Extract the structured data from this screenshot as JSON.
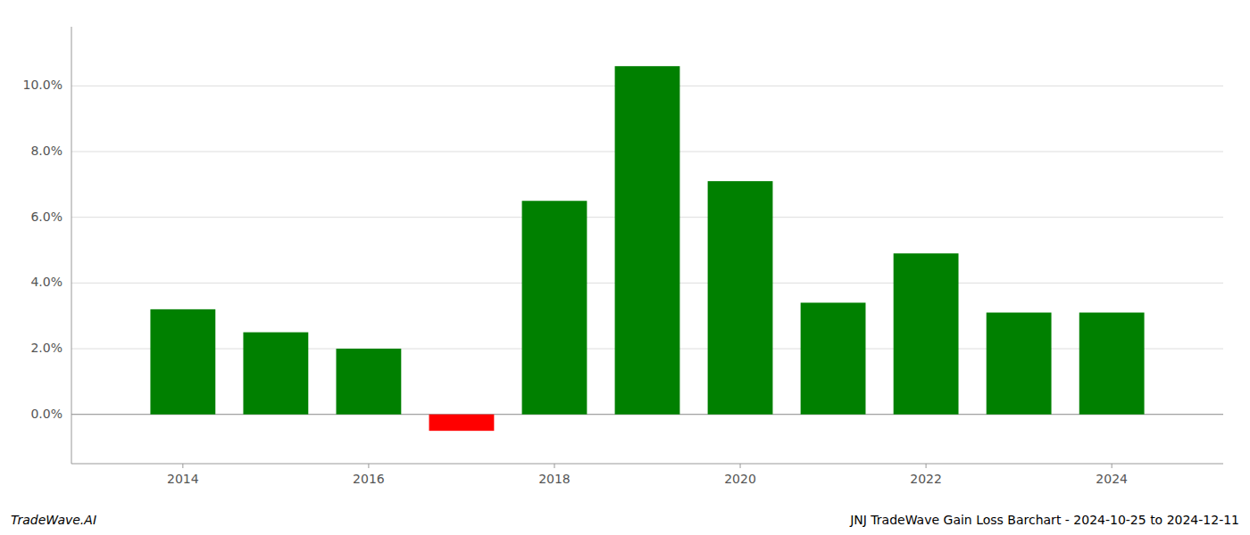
{
  "chart_data": {
    "type": "bar",
    "title": "JNJ TradeWave Gain Loss Barchart - 2024-10-25 to 2024-12-11",
    "annotations": [
      "TradeWave.AI"
    ],
    "x": [
      2014,
      2015,
      2016,
      2017,
      2018,
      2019,
      2020,
      2021,
      2022,
      2023,
      2024
    ],
    "values": [
      0.032,
      0.025,
      0.02,
      -0.005,
      0.065,
      0.106,
      0.071,
      0.034,
      0.049,
      0.031,
      0.031
    ],
    "colors": [
      "#008000",
      "#008000",
      "#008000",
      "#ff0000",
      "#008000",
      "#008000",
      "#008000",
      "#008000",
      "#008000",
      "#008000",
      "#008000"
    ],
    "xlim": [
      2012.8,
      2025.2
    ],
    "xticks": [
      2014,
      2016,
      2018,
      2020,
      2022,
      2024
    ],
    "ylim": [
      -0.015,
      0.118
    ],
    "yticks": [
      {
        "value": 0.0,
        "label": "0.0%"
      },
      {
        "value": 0.02,
        "label": "2.0%"
      },
      {
        "value": 0.04,
        "label": "4.0%"
      },
      {
        "value": 0.06,
        "label": "6.0%"
      },
      {
        "value": 0.08,
        "label": "8.0%"
      },
      {
        "value": 0.1,
        "label": "10.0%"
      }
    ],
    "grid": true
  }
}
